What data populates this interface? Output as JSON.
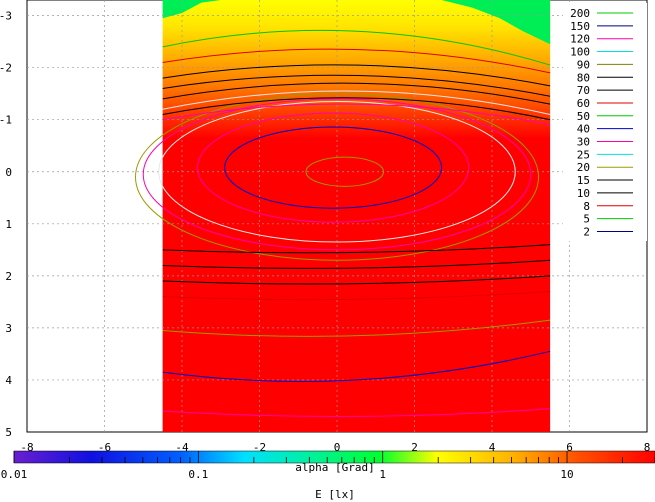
{
  "chart_data": {
    "type": "contour",
    "xlabel": "alpha [Grad]",
    "ylabel": "",
    "colorbar_label": "E [lx]",
    "xlim": [
      -8,
      8
    ],
    "ylim": [
      -3.3,
      5
    ],
    "y_axis_inverted": true,
    "x_ticks": [
      "-8",
      "-6",
      "-4",
      "-2",
      "0",
      "2",
      "4",
      "6",
      "8"
    ],
    "y_ticks": [
      "-3",
      "-2",
      "-1",
      "0",
      "1",
      "2",
      "3",
      "4",
      "5"
    ],
    "colorbar_scale": "log",
    "colorbar_ticks": [
      "0.01",
      "0.1",
      "1",
      "10"
    ],
    "colorbar_range": [
      0.01,
      30
    ],
    "data_x_range": [
      -4.5,
      5.5
    ],
    "grid": true,
    "legend_position": "right",
    "legend": [
      {
        "label": "200",
        "color": "#00c800"
      },
      {
        "label": "150",
        "color": "#000080"
      },
      {
        "label": "120",
        "color": "#ff00aa"
      },
      {
        "label": "100",
        "color": "#00e0e0"
      },
      {
        "label": "90",
        "color": "#808000"
      },
      {
        "label": "80",
        "color": "#000000"
      },
      {
        "label": "70",
        "color": "#000000"
      },
      {
        "label": "60",
        "color": "#e00000"
      },
      {
        "label": "50",
        "color": "#00c800"
      },
      {
        "label": "40",
        "color": "#0000cc"
      },
      {
        "label": "30",
        "color": "#ff00aa"
      },
      {
        "label": "25",
        "color": "#00e0e0"
      },
      {
        "label": "20",
        "color": "#9a9a00"
      },
      {
        "label": "15",
        "color": "#000000"
      },
      {
        "label": "10",
        "color": "#000000"
      },
      {
        "label": "8",
        "color": "#e00000"
      },
      {
        "label": "5",
        "color": "#00c800"
      },
      {
        "label": "2",
        "color": "#000080"
      }
    ],
    "contours": [
      {
        "level": "200",
        "shape": "ellipse",
        "cx": 0.2,
        "cy": 0.0,
        "rx": 1.0,
        "ry": 0.28,
        "color": "#9a9a00"
      },
      {
        "level": "150",
        "shape": "ellipse",
        "cx": -0.1,
        "cy": -0.08,
        "rx": 2.8,
        "ry": 0.78,
        "color": "#0000cc"
      },
      {
        "level": "120",
        "shape": "ellipse",
        "cx": -0.1,
        "cy": -0.08,
        "rx": 3.5,
        "ry": 1.05,
        "color": "#ff00aa"
      },
      {
        "level": "100",
        "shape": "ellipse",
        "cx": 0.0,
        "cy": 0.0,
        "rx": 4.6,
        "ry": 1.35,
        "color": "#e8e8e8"
      },
      {
        "level": "90",
        "shape": "ellipse",
        "cx": 0.0,
        "cy": 0.05,
        "rx": 5.0,
        "ry": 1.45,
        "color": "#ff00aa"
      },
      {
        "level": "80",
        "shape": "ellipse",
        "cx": 0.0,
        "cy": 0.1,
        "rx": 5.2,
        "ry": 1.6,
        "color": "#9a9a00"
      }
    ],
    "bands_top": [
      {
        "y_left": -1.0,
        "y_center": -1.3,
        "y_right": -0.9,
        "color": "#ff00aa"
      },
      {
        "y_left": -1.1,
        "y_center": -1.42,
        "y_right": -1.0,
        "color": "#000000"
      },
      {
        "y_left": -1.2,
        "y_center": -1.55,
        "y_right": -1.1,
        "color": "#e8e8e8"
      },
      {
        "y_left": -1.4,
        "y_center": -1.7,
        "y_right": -1.3,
        "color": "#000000"
      },
      {
        "y_left": -1.6,
        "y_center": -1.85,
        "y_right": -1.45,
        "color": "#000000"
      },
      {
        "y_left": -1.8,
        "y_center": -2.05,
        "y_right": -1.65,
        "color": "#000000"
      },
      {
        "y_left": -2.1,
        "y_center": -2.35,
        "y_right": -1.9,
        "color": "#e00000"
      },
      {
        "y_left": -2.4,
        "y_center": -2.7,
        "y_right": -2.05,
        "color": "#00c800"
      }
    ],
    "bands_bottom": [
      {
        "y_left": 1.5,
        "y_center": 1.55,
        "y_right": 1.4,
        "color": "#000000"
      },
      {
        "y_left": 1.8,
        "y_center": 1.85,
        "y_right": 1.7,
        "color": "#000000"
      },
      {
        "y_left": 2.1,
        "y_center": 2.15,
        "y_right": 2.0,
        "color": "#000000"
      },
      {
        "y_left": 2.4,
        "y_center": 2.45,
        "y_right": 2.3,
        "color": "#e00000"
      },
      {
        "y_left": 3.05,
        "y_center": 3.15,
        "y_right": 2.85,
        "color": "#9a9a00"
      },
      {
        "y_left": 3.85,
        "y_center": 4.0,
        "y_right": 3.45,
        "color": "#0000cc"
      },
      {
        "y_left": 4.6,
        "y_center": 4.7,
        "y_right": 4.55,
        "color": "#ff00aa"
      }
    ]
  }
}
